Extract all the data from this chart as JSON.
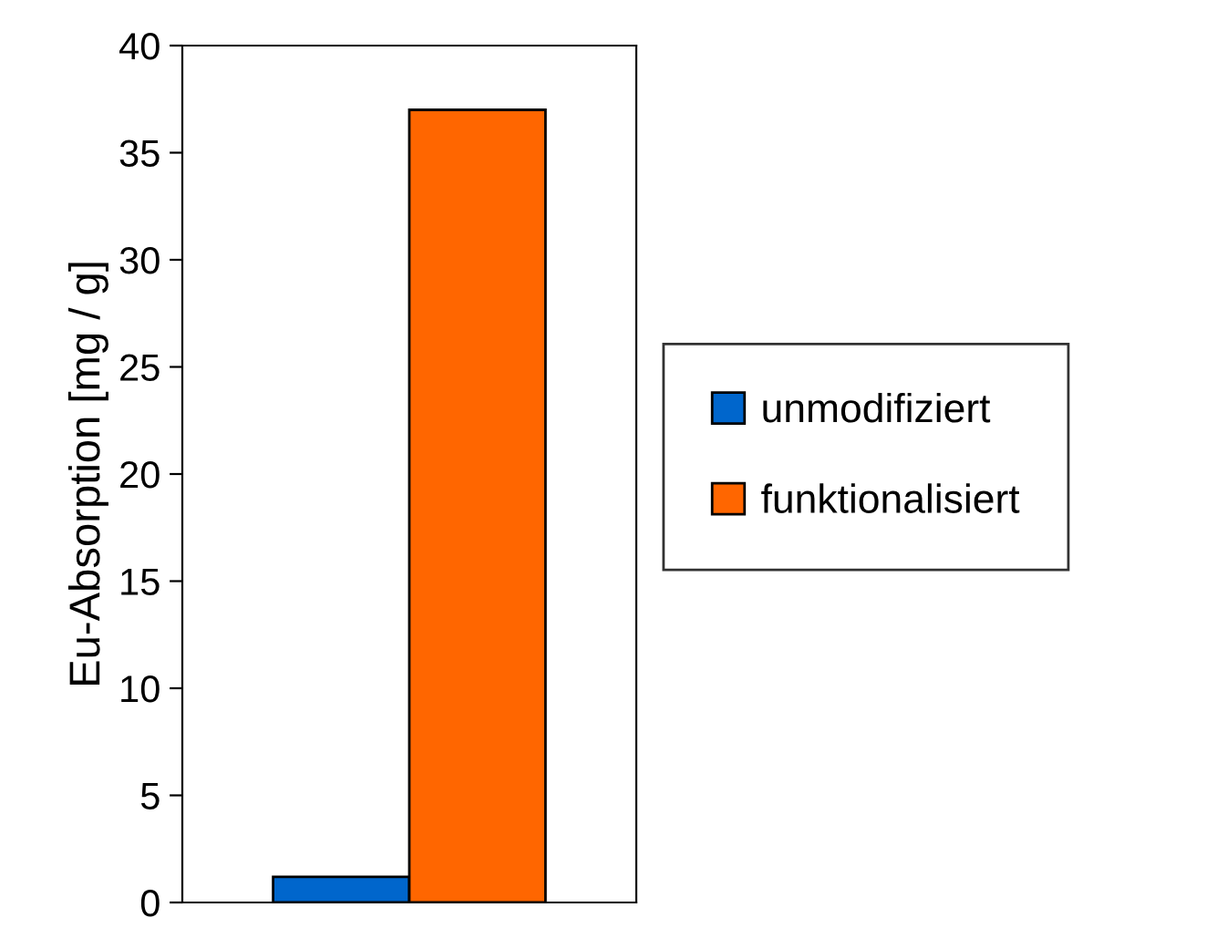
{
  "chart_data": {
    "type": "bar",
    "ylabel": "Eu-Absorption [mg / g]",
    "categories": [
      null
    ],
    "series": [
      {
        "name": "unmodifiziert",
        "color": "#0066cc",
        "values": [
          1.2
        ]
      },
      {
        "name": "funktionalisiert",
        "color": "#ff6600",
        "values": [
          37
        ]
      }
    ],
    "ylim": [
      0,
      40
    ],
    "yticks": [
      0,
      5,
      10,
      15,
      20,
      25,
      30,
      35,
      40
    ],
    "grid": false,
    "legend": "right"
  }
}
